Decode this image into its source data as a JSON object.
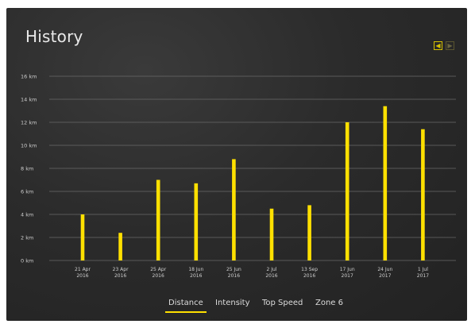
{
  "header": {
    "title": "History",
    "prev_icon": "chevron-left-icon",
    "next_icon": "chevron-right-icon",
    "prev_glyph": "◀",
    "next_glyph": "▶"
  },
  "tabs": [
    {
      "label": "Distance",
      "active": true
    },
    {
      "label": "Intensity",
      "active": false
    },
    {
      "label": "Top Speed",
      "active": false
    },
    {
      "label": "Zone 6",
      "active": false
    }
  ],
  "colors": {
    "bar": "#ffe000",
    "grid": "#6a6a6a",
    "axis_text": "#cfcfcf",
    "accent": "#ffe000"
  },
  "chart_data": {
    "type": "bar",
    "title": "History",
    "xlabel": "",
    "ylabel": "",
    "y_unit": "km",
    "ylim": [
      0,
      16
    ],
    "yticks": [
      "0 km",
      "2 km",
      "4 km",
      "6 km",
      "8 km",
      "10 km",
      "12 km",
      "14 km",
      "16 km"
    ],
    "grid": true,
    "categories": [
      [
        "21 Apr",
        "2016"
      ],
      [
        "23 Apr",
        "2016"
      ],
      [
        "25 Apr",
        "2016"
      ],
      [
        "18 Jun",
        "2016"
      ],
      [
        "25 Jun",
        "2016"
      ],
      [
        "2 Jul",
        "2016"
      ],
      [
        "13 Sep",
        "2016"
      ],
      [
        "17 Jun",
        "2017"
      ],
      [
        "24 Jun",
        "2017"
      ],
      [
        "1 Jul",
        "2017"
      ]
    ],
    "values": [
      4.0,
      2.4,
      7.0,
      6.7,
      8.8,
      4.5,
      4.8,
      12.0,
      13.4,
      11.4
    ]
  }
}
